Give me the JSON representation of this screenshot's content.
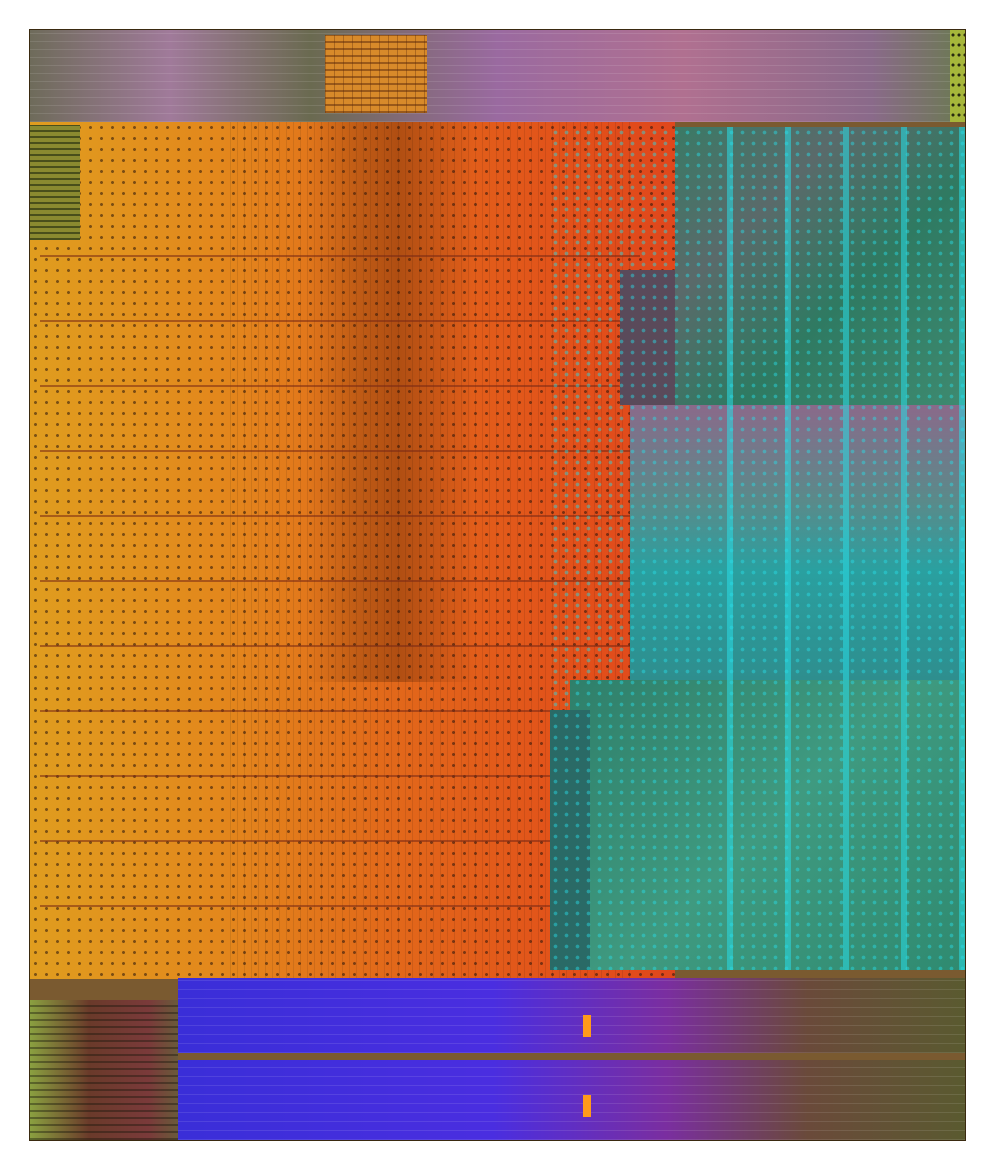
{
  "image": {
    "subject": "die-shot",
    "colors": {
      "background": "#ffffff",
      "orange_core_left": "#e19a1e",
      "orange_core_right": "#e2521a",
      "teal_blocks": "#1f8a7e",
      "blue_memory": "#3a2ed0",
      "magenta_memory": "#8a2a9a",
      "olive_memory": "#6a5a2a",
      "top_strip": "#8a6a8a",
      "cyan_pads": "#2ad0e0"
    }
  }
}
